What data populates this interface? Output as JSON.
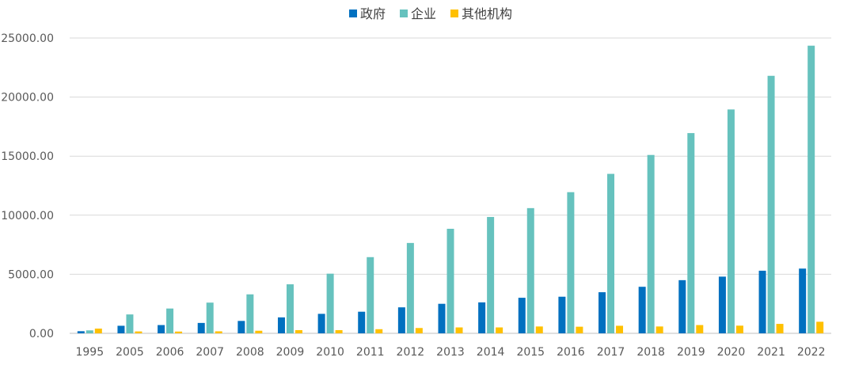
{
  "chart_data": {
    "type": "bar",
    "title": "",
    "xlabel": "",
    "ylabel": "",
    "categories": [
      "1995",
      "2005",
      "2006",
      "2007",
      "2008",
      "2009",
      "2010",
      "2011",
      "2012",
      "2013",
      "2014",
      "2015",
      "2016",
      "2017",
      "2018",
      "2019",
      "2020",
      "2021",
      "2022"
    ],
    "series": [
      {
        "name": "政府",
        "color": "#0070C0",
        "values": [
          180,
          640,
          700,
          880,
          1050,
          1350,
          1650,
          1830,
          2200,
          2500,
          2620,
          3010,
          3100,
          3480,
          3940,
          4500,
          4800,
          5300,
          5480
        ]
      },
      {
        "name": "企业",
        "color": "#66C2BE",
        "values": [
          250,
          1600,
          2100,
          2600,
          3300,
          4150,
          5050,
          6450,
          7650,
          8850,
          9850,
          10600,
          11950,
          13500,
          15100,
          16950,
          18950,
          21800,
          24350
        ]
      },
      {
        "name": "其他机构",
        "color": "#FFC000",
        "values": [
          400,
          160,
          150,
          170,
          220,
          270,
          270,
          350,
          450,
          500,
          500,
          580,
          560,
          640,
          580,
          700,
          650,
          800,
          980
        ]
      }
    ],
    "ylim": [
      0,
      25000
    ],
    "yticks": [
      "0.00",
      "5000.00",
      "10000.00",
      "15000.00",
      "20000.00",
      "25000.00"
    ],
    "ytick_values": [
      0,
      5000,
      10000,
      15000,
      20000,
      25000
    ],
    "legend_position": "top-center",
    "grid": true,
    "grid_color": "#D9D9D9",
    "axis_color": "#BFBFBF",
    "tick_label_color": "#595959"
  }
}
